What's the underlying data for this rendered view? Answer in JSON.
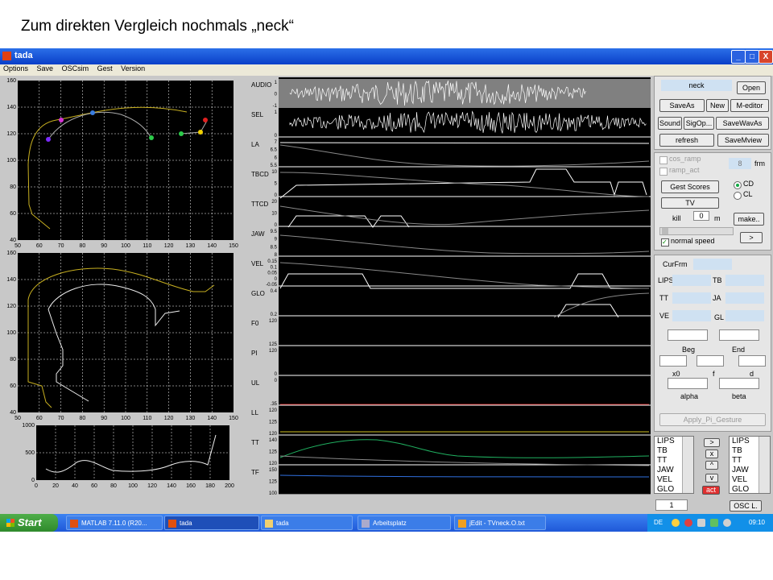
{
  "slide_title": "Zum direkten Vergleich nochmals „neck“",
  "window": {
    "title": "tada",
    "menu": [
      "Options",
      "Save",
      "OSCsim",
      "Gest",
      "Version"
    ],
    "buttons": {
      "minimize": "_",
      "maximize": "□",
      "close": "X"
    }
  },
  "plot1": {
    "y_ticks": [
      "160",
      "140",
      "120",
      "100",
      "80",
      "60",
      "40"
    ],
    "x_ticks": [
      "50",
      "60",
      "70",
      "80",
      "90",
      "100",
      "110",
      "120",
      "130",
      "140",
      "150"
    ],
    "dot_colors": [
      "#7b2bff",
      "#d633d6",
      "#3a7de0",
      "#2ccb4a",
      "#2ccb4a",
      "#f0d000",
      "#e02020"
    ]
  },
  "plot2": {
    "y_ticks": [
      "160",
      "140",
      "120",
      "100",
      "80",
      "60",
      "40"
    ],
    "x_ticks": [
      "50",
      "60",
      "70",
      "80",
      "90",
      "100",
      "110",
      "120",
      "130",
      "140",
      "150"
    ]
  },
  "plot3": {
    "y_ticks": [
      "1000",
      "500",
      "0"
    ],
    "x_ticks": [
      "0",
      "20",
      "40",
      "60",
      "80",
      "100",
      "120",
      "140",
      "160",
      "180",
      "200"
    ]
  },
  "channels": [
    {
      "name": "AUDIO",
      "ticks": [
        "1",
        "0",
        "-1"
      ]
    },
    {
      "name": "SEL",
      "ticks": [
        "1",
        "0"
      ]
    },
    {
      "name": "LA",
      "ticks": [
        "7",
        "6.5",
        "6",
        "5.5"
      ]
    },
    {
      "name": "TBCD",
      "ticks": [
        "10",
        "5",
        "0"
      ]
    },
    {
      "name": "TTCD",
      "ticks": [
        "20",
        "10",
        "0"
      ]
    },
    {
      "name": "JAW",
      "ticks": [
        "9.5",
        "9",
        "8.5",
        "8"
      ]
    },
    {
      "name": "VEL",
      "ticks": [
        "0.15",
        "0.1",
        "0.05",
        "0",
        "-0.05"
      ]
    },
    {
      "name": "GLO",
      "ticks": [
        "0.4",
        "0.2"
      ]
    },
    {
      "name": "F0",
      "ticks": [
        "120",
        "125"
      ]
    },
    {
      "name": "PI",
      "ticks": [
        "120",
        "0"
      ]
    },
    {
      "name": "UL",
      "ticks": [
        "0",
        ".35"
      ]
    },
    {
      "name": "LL",
      "ticks": [
        "120",
        "125",
        "120"
      ]
    },
    {
      "name": "TT",
      "ticks": [
        "140",
        "125",
        "120"
      ]
    },
    {
      "name": "TF",
      "ticks": [
        "150",
        "125",
        "100"
      ]
    }
  ],
  "controls": {
    "name_field": "neck",
    "open": "Open",
    "save_as": "SaveAs",
    "new": "New",
    "m_editor": "M-editor",
    "sound": "Sound",
    "sig_op": "SigOp...",
    "save_wav_as": "SaveWavAs",
    "refresh": "refresh",
    "save_mview": "SaveMview",
    "cos_ramp": "cos_ramp",
    "ramp_act": "ramp_act",
    "frm_value": "8",
    "frm": "frm",
    "gest_scores": "Gest Scores",
    "cd": "CD",
    "cl": "CL",
    "tv": "TV",
    "kill": "kill",
    "kill_value": "0",
    "m": "m",
    "make": "make..",
    "normal_speed": "normal speed",
    "next": ">"
  },
  "readout": {
    "cur_frm": "CurFrm",
    "lips": "LIPS",
    "tb": "TB",
    "tt": "TT",
    "ja": "JA",
    "ve": "VE",
    "gl": "GL",
    "beg": "Beg",
    "end": "End",
    "x0": "x0",
    "f": "f",
    "d": "d",
    "alpha": "alpha",
    "beta": "beta",
    "apply": "Apply_Pi_Gesture"
  },
  "list_left": [
    "LIPS",
    "TB",
    "TT",
    "JAW",
    "VEL",
    "GLO"
  ],
  "list_right": [
    "LIPS",
    "TB",
    "TT",
    "JAW",
    "VEL",
    "GLO"
  ],
  "mid_buttons": [
    ">",
    "x",
    "^",
    "v"
  ],
  "act_button": "act",
  "frame_value": "1",
  "osc_button": "OSC L.",
  "taskbar": {
    "start": "Start",
    "tasks": [
      "MATLAB 7.11.0 (R20...",
      "tada",
      "tada",
      "Arbeitsplatz",
      "jEdit - TVneck.O.txt"
    ],
    "lang": "DE",
    "clock": "09:10"
  }
}
